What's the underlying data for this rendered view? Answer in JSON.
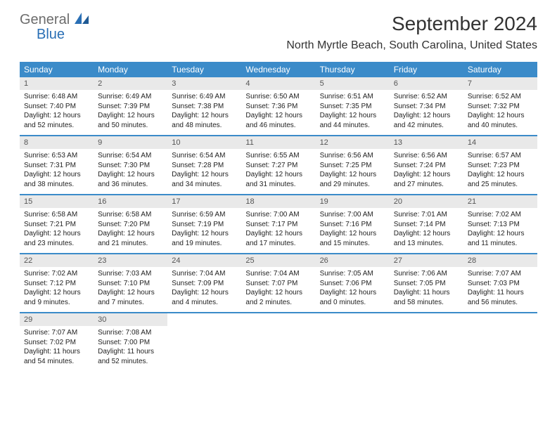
{
  "brand": {
    "word1": "General",
    "word2": "Blue",
    "color_gray": "#6c6c6c",
    "color_blue": "#2a6fb5"
  },
  "title": "September 2024",
  "location": "North Myrtle Beach, South Carolina, United States",
  "colors": {
    "header_bg": "#3b8bc9",
    "header_text": "#ffffff",
    "daynum_bg": "#e9e9e9",
    "daynum_text": "#555555",
    "body_text": "#222222",
    "rule": "#3b8bc9"
  },
  "dow": [
    "Sunday",
    "Monday",
    "Tuesday",
    "Wednesday",
    "Thursday",
    "Friday",
    "Saturday"
  ],
  "weeks": [
    [
      {
        "n": "1",
        "sr": "Sunrise: 6:48 AM",
        "ss": "Sunset: 7:40 PM",
        "dl": "Daylight: 12 hours and 52 minutes."
      },
      {
        "n": "2",
        "sr": "Sunrise: 6:49 AM",
        "ss": "Sunset: 7:39 PM",
        "dl": "Daylight: 12 hours and 50 minutes."
      },
      {
        "n": "3",
        "sr": "Sunrise: 6:49 AM",
        "ss": "Sunset: 7:38 PM",
        "dl": "Daylight: 12 hours and 48 minutes."
      },
      {
        "n": "4",
        "sr": "Sunrise: 6:50 AM",
        "ss": "Sunset: 7:36 PM",
        "dl": "Daylight: 12 hours and 46 minutes."
      },
      {
        "n": "5",
        "sr": "Sunrise: 6:51 AM",
        "ss": "Sunset: 7:35 PM",
        "dl": "Daylight: 12 hours and 44 minutes."
      },
      {
        "n": "6",
        "sr": "Sunrise: 6:52 AM",
        "ss": "Sunset: 7:34 PM",
        "dl": "Daylight: 12 hours and 42 minutes."
      },
      {
        "n": "7",
        "sr": "Sunrise: 6:52 AM",
        "ss": "Sunset: 7:32 PM",
        "dl": "Daylight: 12 hours and 40 minutes."
      }
    ],
    [
      {
        "n": "8",
        "sr": "Sunrise: 6:53 AM",
        "ss": "Sunset: 7:31 PM",
        "dl": "Daylight: 12 hours and 38 minutes."
      },
      {
        "n": "9",
        "sr": "Sunrise: 6:54 AM",
        "ss": "Sunset: 7:30 PM",
        "dl": "Daylight: 12 hours and 36 minutes."
      },
      {
        "n": "10",
        "sr": "Sunrise: 6:54 AM",
        "ss": "Sunset: 7:28 PM",
        "dl": "Daylight: 12 hours and 34 minutes."
      },
      {
        "n": "11",
        "sr": "Sunrise: 6:55 AM",
        "ss": "Sunset: 7:27 PM",
        "dl": "Daylight: 12 hours and 31 minutes."
      },
      {
        "n": "12",
        "sr": "Sunrise: 6:56 AM",
        "ss": "Sunset: 7:25 PM",
        "dl": "Daylight: 12 hours and 29 minutes."
      },
      {
        "n": "13",
        "sr": "Sunrise: 6:56 AM",
        "ss": "Sunset: 7:24 PM",
        "dl": "Daylight: 12 hours and 27 minutes."
      },
      {
        "n": "14",
        "sr": "Sunrise: 6:57 AM",
        "ss": "Sunset: 7:23 PM",
        "dl": "Daylight: 12 hours and 25 minutes."
      }
    ],
    [
      {
        "n": "15",
        "sr": "Sunrise: 6:58 AM",
        "ss": "Sunset: 7:21 PM",
        "dl": "Daylight: 12 hours and 23 minutes."
      },
      {
        "n": "16",
        "sr": "Sunrise: 6:58 AM",
        "ss": "Sunset: 7:20 PM",
        "dl": "Daylight: 12 hours and 21 minutes."
      },
      {
        "n": "17",
        "sr": "Sunrise: 6:59 AM",
        "ss": "Sunset: 7:19 PM",
        "dl": "Daylight: 12 hours and 19 minutes."
      },
      {
        "n": "18",
        "sr": "Sunrise: 7:00 AM",
        "ss": "Sunset: 7:17 PM",
        "dl": "Daylight: 12 hours and 17 minutes."
      },
      {
        "n": "19",
        "sr": "Sunrise: 7:00 AM",
        "ss": "Sunset: 7:16 PM",
        "dl": "Daylight: 12 hours and 15 minutes."
      },
      {
        "n": "20",
        "sr": "Sunrise: 7:01 AM",
        "ss": "Sunset: 7:14 PM",
        "dl": "Daylight: 12 hours and 13 minutes."
      },
      {
        "n": "21",
        "sr": "Sunrise: 7:02 AM",
        "ss": "Sunset: 7:13 PM",
        "dl": "Daylight: 12 hours and 11 minutes."
      }
    ],
    [
      {
        "n": "22",
        "sr": "Sunrise: 7:02 AM",
        "ss": "Sunset: 7:12 PM",
        "dl": "Daylight: 12 hours and 9 minutes."
      },
      {
        "n": "23",
        "sr": "Sunrise: 7:03 AM",
        "ss": "Sunset: 7:10 PM",
        "dl": "Daylight: 12 hours and 7 minutes."
      },
      {
        "n": "24",
        "sr": "Sunrise: 7:04 AM",
        "ss": "Sunset: 7:09 PM",
        "dl": "Daylight: 12 hours and 4 minutes."
      },
      {
        "n": "25",
        "sr": "Sunrise: 7:04 AM",
        "ss": "Sunset: 7:07 PM",
        "dl": "Daylight: 12 hours and 2 minutes."
      },
      {
        "n": "26",
        "sr": "Sunrise: 7:05 AM",
        "ss": "Sunset: 7:06 PM",
        "dl": "Daylight: 12 hours and 0 minutes."
      },
      {
        "n": "27",
        "sr": "Sunrise: 7:06 AM",
        "ss": "Sunset: 7:05 PM",
        "dl": "Daylight: 11 hours and 58 minutes."
      },
      {
        "n": "28",
        "sr": "Sunrise: 7:07 AM",
        "ss": "Sunset: 7:03 PM",
        "dl": "Daylight: 11 hours and 56 minutes."
      }
    ],
    [
      {
        "n": "29",
        "sr": "Sunrise: 7:07 AM",
        "ss": "Sunset: 7:02 PM",
        "dl": "Daylight: 11 hours and 54 minutes."
      },
      {
        "n": "30",
        "sr": "Sunrise: 7:08 AM",
        "ss": "Sunset: 7:00 PM",
        "dl": "Daylight: 11 hours and 52 minutes."
      },
      {
        "n": "",
        "sr": "",
        "ss": "",
        "dl": ""
      },
      {
        "n": "",
        "sr": "",
        "ss": "",
        "dl": ""
      },
      {
        "n": "",
        "sr": "",
        "ss": "",
        "dl": ""
      },
      {
        "n": "",
        "sr": "",
        "ss": "",
        "dl": ""
      },
      {
        "n": "",
        "sr": "",
        "ss": "",
        "dl": ""
      }
    ]
  ]
}
